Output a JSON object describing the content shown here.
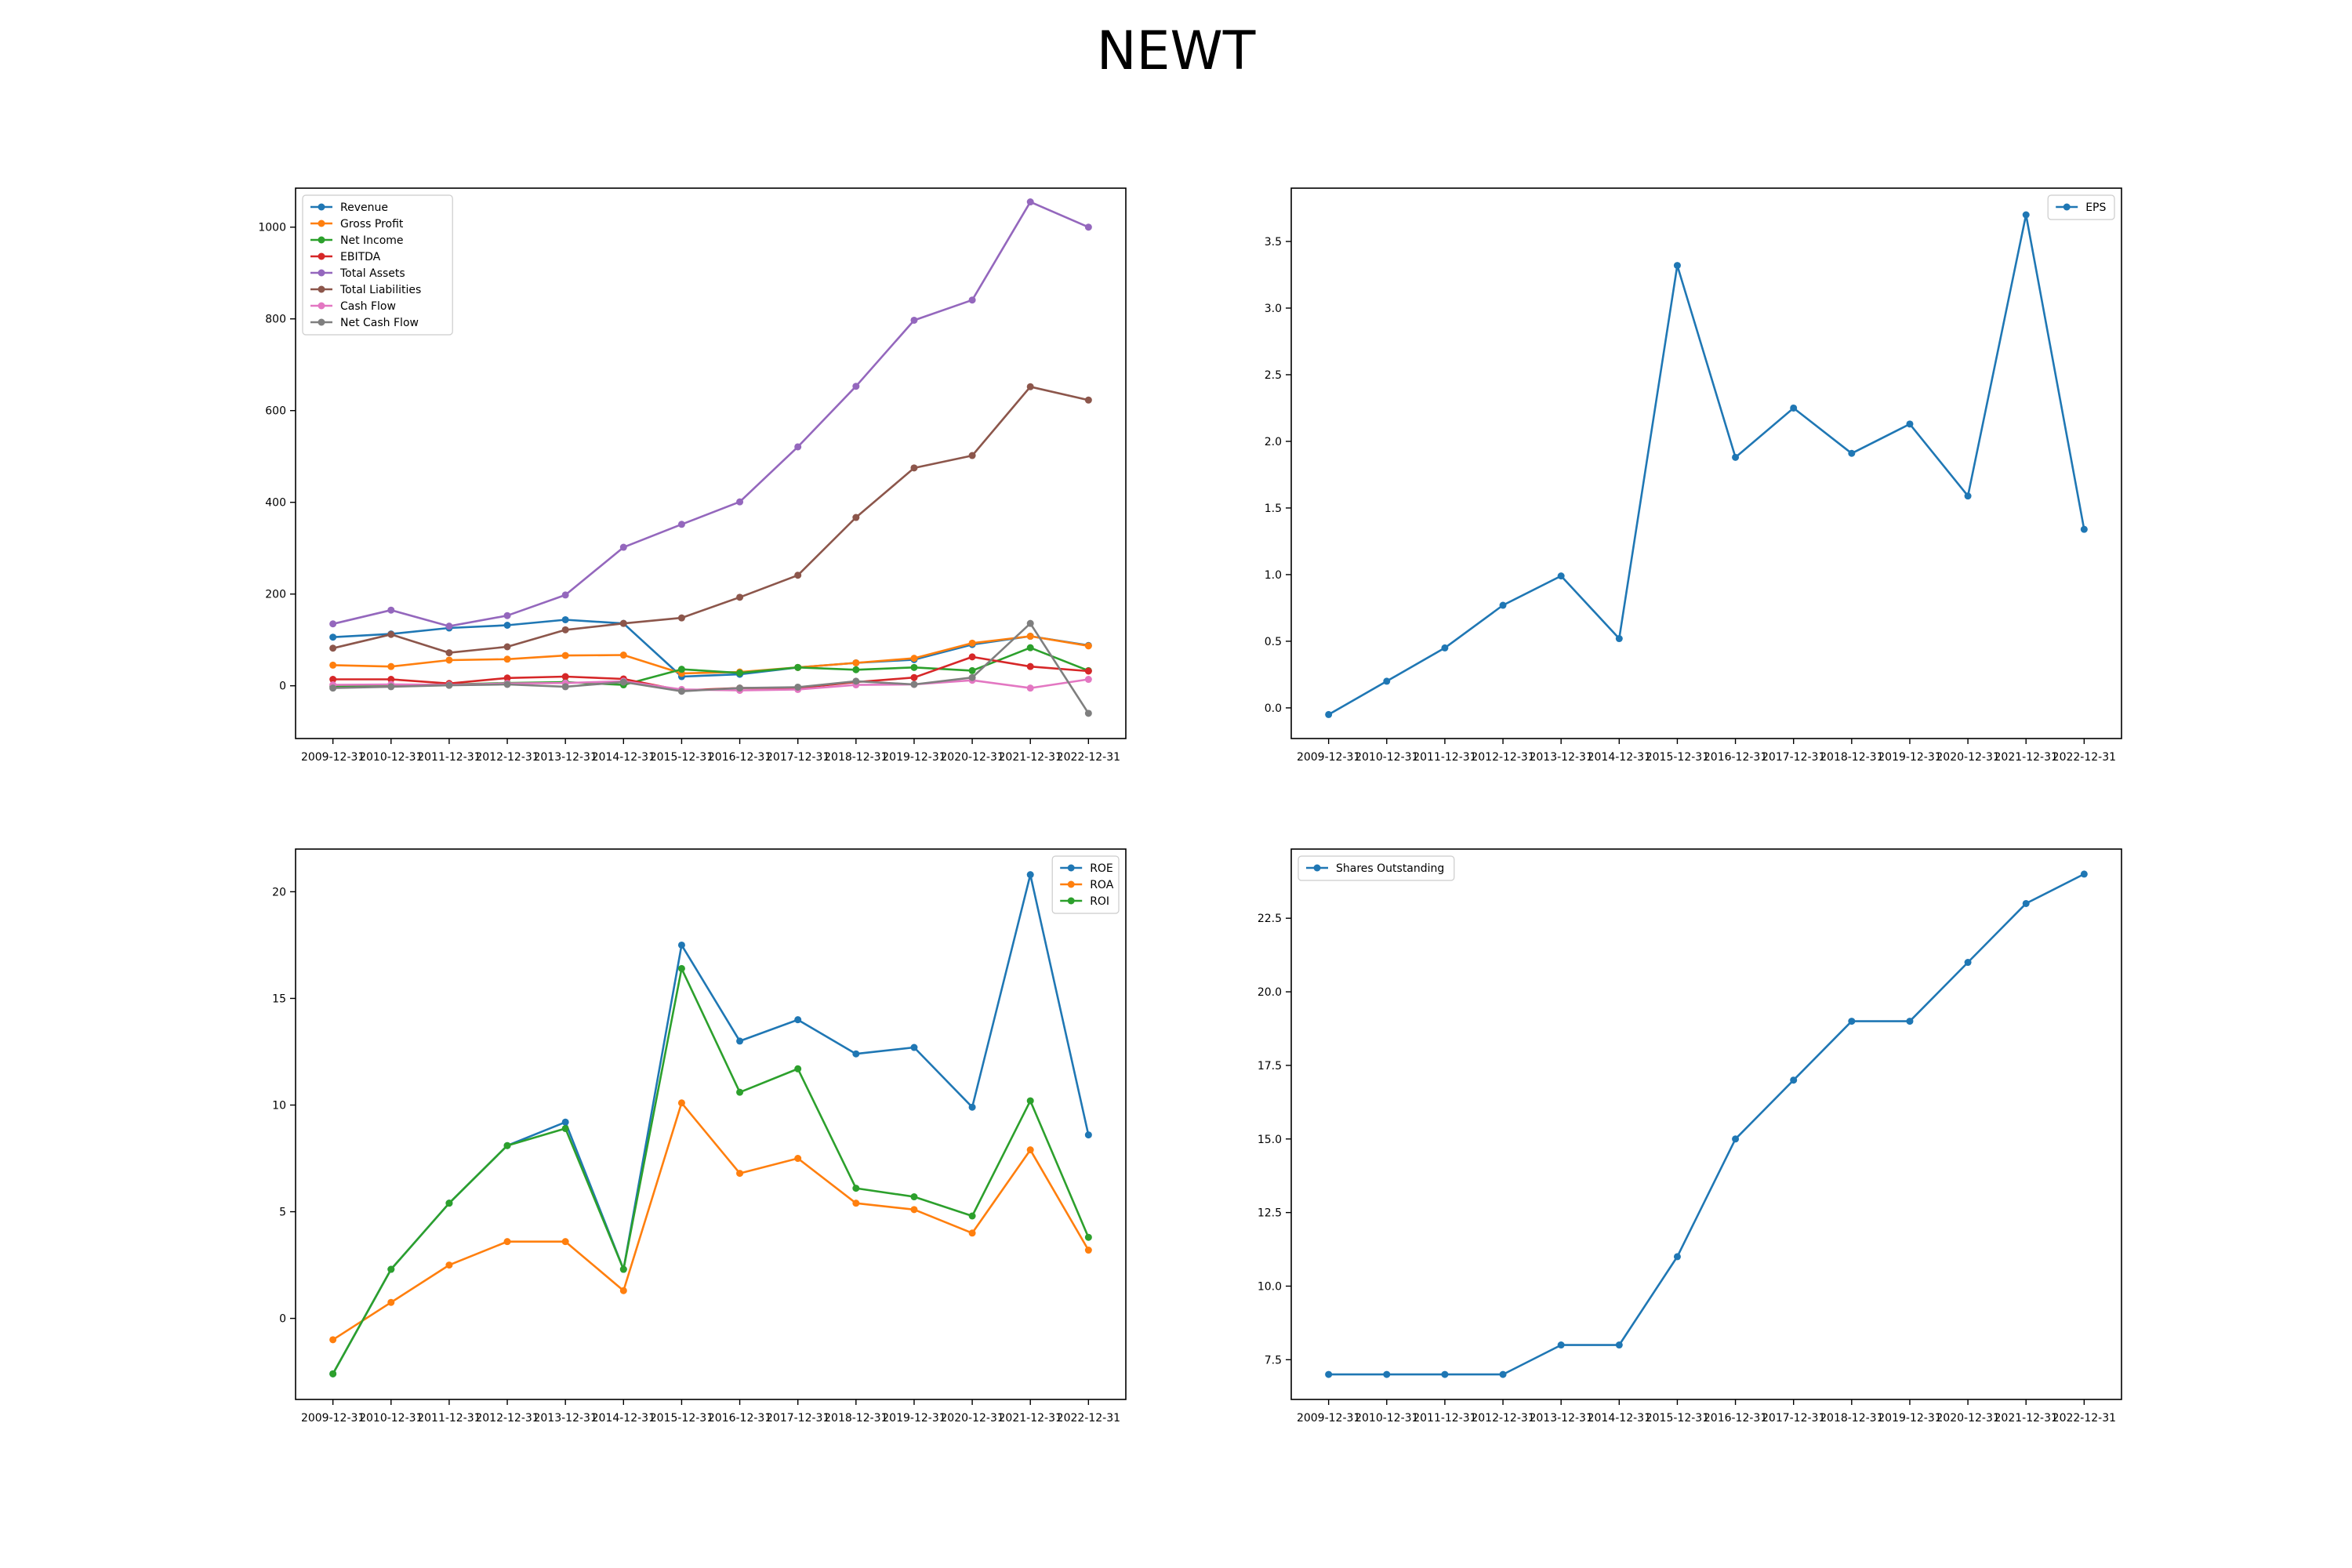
{
  "title": "NEWT",
  "chart_data": [
    {
      "type": "line",
      "x": [
        "2009-12-31",
        "2010-12-31",
        "2011-12-31",
        "2012-12-31",
        "2013-12-31",
        "2014-12-31",
        "2015-12-31",
        "2016-12-31",
        "2017-12-31",
        "2018-12-31",
        "2019-12-31",
        "2020-12-31",
        "2021-12-31",
        "2022-12-31"
      ],
      "ylim": [
        -115,
        1085
      ],
      "yticks": [
        "0",
        "200",
        "400",
        "600",
        "800",
        "1000"
      ],
      "ytick_values": [
        0,
        200,
        400,
        600,
        800,
        1000
      ],
      "legend_position": "upper-left",
      "series": [
        {
          "name": "Revenue",
          "color": "#1f77b4",
          "values": [
            106,
            113,
            126,
            132,
            144,
            136,
            20,
            25,
            40,
            50,
            57,
            90,
            108,
            88
          ]
        },
        {
          "name": "Gross Profit",
          "color": "#ff7f0e",
          "values": [
            45,
            42,
            56,
            58,
            66,
            67,
            27,
            30,
            40,
            50,
            60,
            93,
            108,
            87
          ]
        },
        {
          "name": "Net Income",
          "color": "#2ca02c",
          "values": [
            -1,
            2,
            3,
            6,
            8,
            2,
            36,
            28,
            40,
            35,
            40,
            33,
            83,
            33
          ]
        },
        {
          "name": "EBITDA",
          "color": "#d62728",
          "values": [
            14,
            14,
            5,
            17,
            20,
            15,
            -10,
            -5,
            -5,
            8,
            18,
            63,
            42,
            32
          ]
        },
        {
          "name": "Total Assets",
          "color": "#9467bd",
          "values": [
            135,
            165,
            130,
            153,
            198,
            302,
            352,
            401,
            521,
            653,
            797,
            841,
            1055,
            1000
          ]
        },
        {
          "name": "Total Liabilities",
          "color": "#8c564b",
          "values": [
            82,
            112,
            72,
            85,
            122,
            136,
            148,
            193,
            241,
            367,
            475,
            502,
            652,
            623
          ]
        },
        {
          "name": "Cash Flow",
          "color": "#e377c2",
          "values": [
            2,
            3,
            2,
            5,
            6,
            10,
            -8,
            -10,
            -8,
            2,
            3,
            12,
            -5,
            14
          ]
        },
        {
          "name": "Net Cash Flow",
          "color": "#7f7f7f",
          "values": [
            -5,
            -2,
            1,
            3,
            -2,
            8,
            -12,
            -5,
            -3,
            10,
            3,
            18,
            136,
            -60
          ]
        }
      ]
    },
    {
      "type": "line",
      "x": [
        "2009-12-31",
        "2010-12-31",
        "2011-12-31",
        "2012-12-31",
        "2013-12-31",
        "2014-12-31",
        "2015-12-31",
        "2016-12-31",
        "2017-12-31",
        "2018-12-31",
        "2019-12-31",
        "2020-12-31",
        "2021-12-31",
        "2022-12-31"
      ],
      "ylim": [
        -0.23,
        3.9
      ],
      "yticks": [
        "0.0",
        "0.5",
        "1.0",
        "1.5",
        "2.0",
        "2.5",
        "3.0",
        "3.5"
      ],
      "ytick_values": [
        0,
        0.5,
        1,
        1.5,
        2,
        2.5,
        3,
        3.5
      ],
      "legend_position": "upper-right",
      "series": [
        {
          "name": "EPS",
          "color": "#1f77b4",
          "values": [
            -0.05,
            0.2,
            0.45,
            0.77,
            0.99,
            0.52,
            3.32,
            1.88,
            2.25,
            1.91,
            2.13,
            1.59,
            3.7,
            1.34
          ]
        }
      ]
    },
    {
      "type": "line",
      "x": [
        "2009-12-31",
        "2010-12-31",
        "2011-12-31",
        "2012-12-31",
        "2013-12-31",
        "2014-12-31",
        "2015-12-31",
        "2016-12-31",
        "2017-12-31",
        "2018-12-31",
        "2019-12-31",
        "2020-12-31",
        "2021-12-31",
        "2022-12-31"
      ],
      "ylim": [
        -3.8,
        22
      ],
      "yticks": [
        "0",
        "5",
        "10",
        "15",
        "20"
      ],
      "ytick_values": [
        0,
        5,
        10,
        15,
        20
      ],
      "legend_position": "upper-right",
      "series": [
        {
          "name": "ROE",
          "color": "#1f77b4",
          "values": [
            -2.6,
            2.3,
            5.4,
            8.1,
            9.2,
            2.3,
            17.5,
            13.0,
            14.0,
            12.4,
            12.7,
            9.9,
            20.8,
            8.6
          ]
        },
        {
          "name": "ROA",
          "color": "#ff7f0e",
          "values": [
            -1.0,
            0.75,
            2.5,
            3.6,
            3.6,
            1.3,
            10.1,
            6.8,
            7.5,
            5.4,
            5.1,
            4.0,
            7.9,
            3.2
          ]
        },
        {
          "name": "ROI",
          "color": "#2ca02c",
          "values": [
            -2.6,
            2.3,
            5.4,
            8.1,
            8.9,
            2.3,
            16.4,
            10.6,
            11.7,
            6.1,
            5.7,
            4.8,
            10.2,
            3.8
          ]
        }
      ]
    },
    {
      "type": "line",
      "x": [
        "2009-12-31",
        "2010-12-31",
        "2011-12-31",
        "2012-12-31",
        "2013-12-31",
        "2014-12-31",
        "2015-12-31",
        "2016-12-31",
        "2017-12-31",
        "2018-12-31",
        "2019-12-31",
        "2020-12-31",
        "2021-12-31",
        "2022-12-31"
      ],
      "ylim": [
        6.15,
        24.85
      ],
      "yticks": [
        "7.5",
        "10.0",
        "12.5",
        "15.0",
        "17.5",
        "20.0",
        "22.5"
      ],
      "ytick_values": [
        7.5,
        10,
        12.5,
        15,
        17.5,
        20,
        22.5
      ],
      "legend_position": "upper-left",
      "series": [
        {
          "name": "Shares Outstanding",
          "color": "#1f77b4",
          "values": [
            7,
            7,
            7,
            7,
            8,
            8,
            11,
            15,
            17,
            19,
            19,
            21,
            23,
            24
          ]
        }
      ]
    }
  ]
}
